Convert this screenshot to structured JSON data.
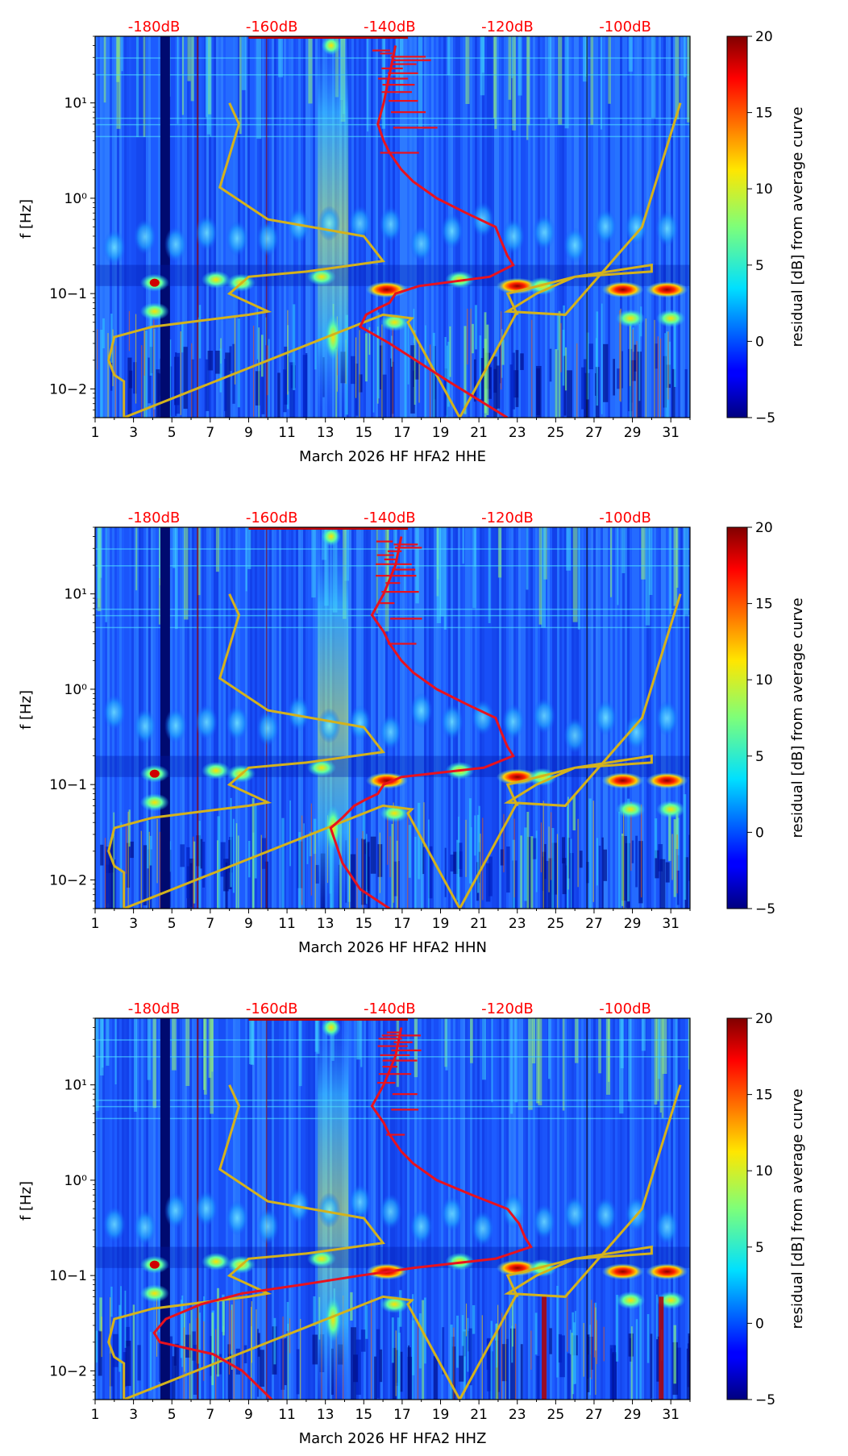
{
  "chart_data": [
    {
      "type": "heatmap",
      "title": "",
      "xlabel": "March 2026 HF HFA2  HHE",
      "ylabel": "f [Hz]",
      "xticks": [
        "1",
        "3",
        "5",
        "7",
        "9",
        "11",
        "13",
        "15",
        "17",
        "19",
        "21",
        "23",
        "25",
        "27",
        "29",
        "31"
      ],
      "yticks": [
        "10−2",
        "10−1",
        "10⁰",
        "10¹"
      ],
      "top_labels": [
        "-180dB",
        "-160dB",
        "-140dB",
        "-120dB",
        "-100dB"
      ],
      "colorbar": {
        "label": "residual [dB] from average curve",
        "ticks": [
          "−5",
          "0",
          "5",
          "10",
          "15",
          "20"
        ]
      },
      "xlim": [
        1,
        32
      ],
      "ylim": [
        0.005,
        50
      ],
      "red_curve": {
        "db": [
          -139,
          -140,
          -141,
          -142,
          -141,
          -140,
          -138,
          -136,
          -132,
          -127,
          -122,
          -121,
          -120,
          -119,
          -123,
          -135,
          -139,
          -140,
          -142,
          -144,
          -145,
          -140,
          -130,
          -120
        ],
        "f": [
          40,
          20,
          10,
          6,
          4,
          3,
          2,
          1.5,
          1,
          0.7,
          0.5,
          0.35,
          0.25,
          0.2,
          0.15,
          0.12,
          0.1,
          0.08,
          0.07,
          0.06,
          0.045,
          0.03,
          0.012,
          0.005
        ]
      },
      "yellow_curve": {
        "day": [
          8,
          8.5,
          7.5,
          10,
          15,
          16,
          12,
          9,
          8,
          10,
          9,
          4,
          2,
          1.7,
          2,
          2.5,
          2.5,
          16,
          17.5,
          17.3,
          20,
          23,
          23,
          22.5,
          26,
          30,
          30,
          26,
          24,
          22.5,
          25.5,
          29.5,
          31.5
        ],
        "f": [
          10,
          6,
          1.3,
          0.6,
          0.4,
          0.22,
          0.17,
          0.15,
          0.1,
          0.065,
          0.06,
          0.045,
          0.035,
          0.02,
          0.014,
          0.012,
          0.005,
          0.06,
          0.055,
          0.05,
          0.005,
          0.065,
          0.06,
          0.1,
          0.15,
          0.2,
          0.17,
          0.15,
          0.1,
          0.065,
          0.06,
          0.5,
          10
        ]
      }
    },
    {
      "type": "heatmap",
      "title": "",
      "xlabel": "March 2026 HF HFA2  HHN",
      "ylabel": "f [Hz]",
      "xticks": [
        "1",
        "3",
        "5",
        "7",
        "9",
        "11",
        "13",
        "15",
        "17",
        "19",
        "21",
        "23",
        "25",
        "27",
        "29",
        "31"
      ],
      "yticks": [
        "10−2",
        "10−1",
        "10⁰",
        "10¹"
      ],
      "top_labels": [
        "-180dB",
        "-160dB",
        "-140dB",
        "-120dB",
        "-100dB"
      ],
      "colorbar": {
        "label": "residual [dB] from average curve",
        "ticks": [
          "−5",
          "0",
          "5",
          "10",
          "15",
          "20"
        ]
      },
      "xlim": [
        1,
        32
      ],
      "ylim": [
        0.005,
        50
      ],
      "red_curve": {
        "db": [
          -138,
          -139,
          -141,
          -143,
          -141,
          -140,
          -138,
          -136,
          -132,
          -127,
          -122,
          -121,
          -120,
          -119,
          -124,
          -138,
          -141,
          -142,
          -144,
          -146,
          -148,
          -150,
          -148,
          -145,
          -140
        ],
        "f": [
          40,
          20,
          10,
          6,
          4,
          3,
          2,
          1.5,
          1,
          0.7,
          0.5,
          0.35,
          0.25,
          0.2,
          0.15,
          0.12,
          0.1,
          0.08,
          0.07,
          0.06,
          0.045,
          0.035,
          0.015,
          0.008,
          0.005
        ]
      },
      "yellow_curve": {
        "day": [
          8,
          8.5,
          7.5,
          10,
          15,
          16,
          12,
          9,
          8,
          10,
          9,
          4,
          2,
          1.7,
          2,
          2.5,
          2.5,
          16,
          17.5,
          17.3,
          20,
          23,
          23,
          22.5,
          26,
          30,
          30,
          26,
          24,
          22.5,
          25.5,
          29.5,
          31.5
        ],
        "f": [
          10,
          6,
          1.3,
          0.6,
          0.4,
          0.22,
          0.17,
          0.15,
          0.1,
          0.065,
          0.06,
          0.045,
          0.035,
          0.02,
          0.014,
          0.012,
          0.005,
          0.06,
          0.055,
          0.05,
          0.005,
          0.065,
          0.06,
          0.1,
          0.15,
          0.2,
          0.17,
          0.15,
          0.1,
          0.065,
          0.06,
          0.5,
          10
        ]
      }
    },
    {
      "type": "heatmap",
      "title": "",
      "xlabel": "March 2026 HF HFA2  HHZ",
      "ylabel": "f [Hz]",
      "xticks": [
        "1",
        "3",
        "5",
        "7",
        "9",
        "11",
        "13",
        "15",
        "17",
        "19",
        "21",
        "23",
        "25",
        "27",
        "29",
        "31"
      ],
      "yticks": [
        "10−2",
        "10−1",
        "10⁰",
        "10¹"
      ],
      "top_labels": [
        "-180dB",
        "-160dB",
        "-140dB",
        "-120dB",
        "-100dB"
      ],
      "colorbar": {
        "label": "residual [dB] from average curve",
        "ticks": [
          "−5",
          "0",
          "5",
          "10",
          "15",
          "20"
        ]
      },
      "xlim": [
        1,
        32
      ],
      "ylim": [
        0.005,
        50
      ],
      "red_curve": {
        "db": [
          -138,
          -139,
          -141,
          -143,
          -141,
          -140,
          -138,
          -136,
          -132,
          -126,
          -120,
          -118,
          -117,
          -116,
          -122,
          -136,
          -145,
          -155,
          -165,
          -172,
          -178,
          -180,
          -179,
          -170,
          -165,
          -160
        ],
        "f": [
          40,
          20,
          10,
          6,
          4,
          3,
          2,
          1.5,
          1,
          0.7,
          0.5,
          0.35,
          0.25,
          0.2,
          0.15,
          0.12,
          0.1,
          0.08,
          0.065,
          0.05,
          0.035,
          0.025,
          0.02,
          0.015,
          0.01,
          0.005
        ]
      },
      "yellow_curve": {
        "day": [
          8,
          8.5,
          7.5,
          10,
          15,
          16,
          12,
          9,
          8,
          10,
          9,
          4,
          2,
          1.7,
          2,
          2.5,
          2.5,
          16,
          17.5,
          17.3,
          20,
          23,
          23,
          22.5,
          26,
          30,
          30,
          26,
          24,
          22.5,
          25.5,
          29.5,
          31.5
        ],
        "f": [
          10,
          6,
          1.3,
          0.6,
          0.4,
          0.22,
          0.17,
          0.15,
          0.1,
          0.065,
          0.06,
          0.045,
          0.035,
          0.02,
          0.014,
          0.012,
          0.005,
          0.06,
          0.055,
          0.05,
          0.005,
          0.065,
          0.06,
          0.1,
          0.15,
          0.2,
          0.17,
          0.15,
          0.1,
          0.065,
          0.06,
          0.5,
          10
        ]
      }
    }
  ],
  "colors": {
    "top_label": "#ff0000",
    "red_curve": "#e8121e",
    "yellow_curve": "#d4b21c",
    "axis": "#000000"
  }
}
